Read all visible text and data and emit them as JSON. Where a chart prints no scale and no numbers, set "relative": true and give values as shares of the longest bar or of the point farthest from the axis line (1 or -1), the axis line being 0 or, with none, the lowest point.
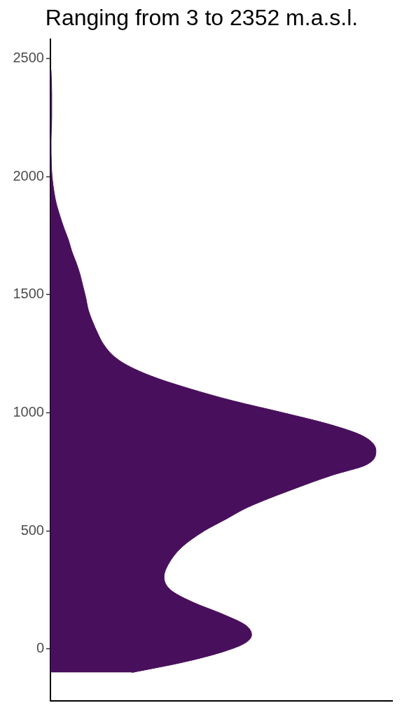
{
  "chart_data": {
    "type": "area",
    "title": "Ranging from 3 to 2352 m.a.s.l.",
    "orientation": "horizontal",
    "relative": true,
    "color": "#480f5c",
    "x": [
      -100,
      -55,
      -10,
      25,
      60,
      100,
      145,
      200,
      250,
      305,
      360,
      430,
      500,
      550,
      600,
      680,
      735,
      780,
      840,
      900,
      950,
      1000,
      1050,
      1100,
      1150,
      1200,
      1240,
      1290,
      1337,
      1387,
      1437,
      1485,
      1535,
      1585,
      1632,
      1682,
      1733,
      1780,
      1830,
      1880,
      1927,
      2000,
      2050,
      2150,
      2250,
      2350,
      2450
    ],
    "values": [
      0.25,
      0.412,
      0.535,
      0.598,
      0.618,
      0.6,
      0.533,
      0.434,
      0.369,
      0.349,
      0.363,
      0.403,
      0.473,
      0.54,
      0.607,
      0.753,
      0.865,
      0.971,
      1,
      0.962,
      0.859,
      0.715,
      0.562,
      0.432,
      0.32,
      0.237,
      0.194,
      0.163,
      0.145,
      0.129,
      0.116,
      0.109,
      0.1,
      0.091,
      0.08,
      0.066,
      0.055,
      0.042,
      0.03,
      0.019,
      0.012,
      0.005,
      0.003,
      0.002,
      0.004,
      0.004,
      0.002
    ],
    "ylim": [
      -220,
      2580
    ],
    "yticks": [
      0,
      500,
      1000,
      1500,
      2000,
      2500
    ],
    "grid": false,
    "legend": false
  }
}
